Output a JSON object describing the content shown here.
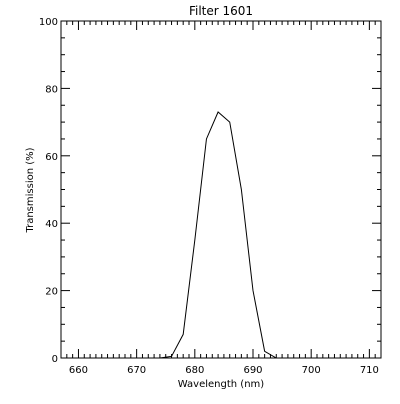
{
  "chart_data": {
    "type": "line",
    "title": "Filter 1601",
    "xlabel": "Wavelength (nm)",
    "ylabel": "Transmission (%)",
    "xlim": [
      657,
      712
    ],
    "ylim": [
      0,
      100
    ],
    "xticks": [
      660,
      670,
      680,
      690,
      700,
      710
    ],
    "xtick_labels": [
      "660",
      "670",
      "680",
      "690",
      "700",
      "710"
    ],
    "yticks": [
      0,
      20,
      40,
      60,
      80,
      100
    ],
    "ytick_labels": [
      "0",
      "20",
      "40",
      "60",
      "80",
      "100"
    ],
    "x_minor_step": 1,
    "y_minor_step": 5,
    "grid": false,
    "line_color": "#000000",
    "series": [
      {
        "x": [
          657,
          674,
          676,
          678,
          680,
          682,
          684,
          686,
          688,
          690,
          692,
          694,
          712
        ],
        "y": [
          0,
          0,
          0.5,
          7,
          35,
          65,
          73,
          70,
          50,
          20,
          2,
          0,
          0
        ]
      }
    ]
  }
}
